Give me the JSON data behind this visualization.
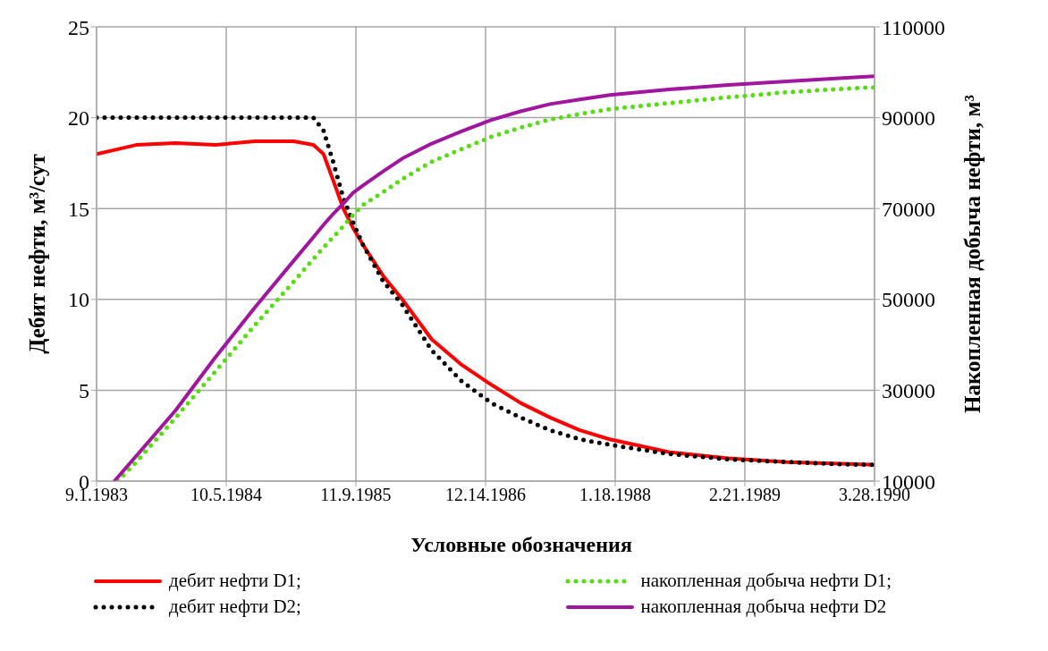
{
  "chart_data": {
    "type": "line",
    "xlabel": null,
    "ylabel": "Дебит нефти, м³/сут",
    "y2label": "Накопленная добыча нефти, м³",
    "legend_title": "Условные обозначения",
    "x": [
      "1983-09-01",
      "1984-01-01",
      "1984-05-01",
      "1984-09-01",
      "1985-01-01",
      "1985-05-01",
      "1985-07-01",
      "1985-08-01",
      "1985-09-01",
      "1985-10-01",
      "1985-11-01",
      "1985-12-01",
      "1986-02-01",
      "1986-04-01",
      "1986-07-01",
      "1986-10-01",
      "1987-01-01",
      "1987-04-01",
      "1987-07-01",
      "1987-10-01",
      "1988-01-01",
      "1988-07-01",
      "1989-01-01",
      "1989-07-01",
      "1990-01-01",
      "1990-03-28"
    ],
    "series": [
      {
        "name": "дебит нефти D1;",
        "color": "#ff0000",
        "line_style": "solid",
        "values": [
          18.0,
          18.5,
          18.6,
          18.5,
          18.7,
          18.7,
          18.5,
          18.0,
          16.5,
          15.0,
          13.9,
          13.0,
          11.3,
          10.0,
          7.8,
          6.4,
          5.3,
          4.3,
          3.5,
          2.8,
          2.3,
          1.6,
          1.25,
          1.05,
          0.95,
          0.9
        ]
      },
      {
        "name": "дебит нефти D2;",
        "color": "#000000",
        "line_style": "dotted",
        "values": [
          20,
          20,
          20,
          20,
          20,
          20,
          20,
          19.3,
          17.5,
          15.6,
          14.2,
          13.0,
          11.0,
          9.7,
          7.2,
          5.5,
          4.3,
          3.5,
          2.8,
          2.3,
          2.0,
          1.5,
          1.2,
          1.05,
          0.92,
          0.9
        ]
      },
      {
        "name": "накопленная добыча нефти D1;",
        "color": "#55dd11",
        "line_style": "dotted",
        "axis": "y2",
        "x": [
          "1983-11-06",
          "1984-01-01",
          "1984-05-01",
          "1984-09-01",
          "1985-01-01",
          "1985-05-01",
          "1985-07-01",
          "1985-08-01",
          "1985-09-01",
          "1985-10-01",
          "1985-11-01",
          "1985-12-01",
          "1986-02-01",
          "1986-04-01",
          "1986-07-01",
          "1986-10-01",
          "1987-01-01",
          "1987-04-01",
          "1987-07-01",
          "1987-10-01",
          "1988-01-01",
          "1988-07-01",
          "1989-01-01",
          "1989-07-01",
          "1990-01-01",
          "1990-03-28"
        ],
        "values": [
          10000,
          14200,
          23900,
          34100,
          44300,
          53900,
          58900,
          61400,
          63800,
          66100,
          68600,
          70800,
          73600,
          76500,
          80300,
          83100,
          85800,
          87800,
          89600,
          90800,
          91900,
          93200,
          94500,
          95600,
          96400,
          96700
        ]
      },
      {
        "name": "накопленная добыча нефти D2",
        "color": "#a0169e",
        "line_style": "solid",
        "axis": "y2",
        "x": [
          "1983-10-26",
          "1984-01-01",
          "1984-05-01",
          "1984-09-01",
          "1985-01-01",
          "1985-05-01",
          "1985-07-01",
          "1985-08-01",
          "1985-09-01",
          "1985-10-01",
          "1985-11-01",
          "1985-12-01",
          "1986-02-01",
          "1986-04-01",
          "1986-07-01",
          "1986-10-01",
          "1987-01-01",
          "1987-04-01",
          "1987-07-01",
          "1987-10-01",
          "1988-01-01",
          "1988-07-01",
          "1989-01-01",
          "1989-07-01",
          "1990-01-01",
          "1990-03-28"
        ],
        "values": [
          10000,
          15500,
          25500,
          37200,
          48200,
          58500,
          63700,
          66400,
          68900,
          71100,
          73500,
          75100,
          78200,
          81000,
          84300,
          87000,
          89500,
          91400,
          93000,
          94000,
          95000,
          96200,
          97200,
          98000,
          98800,
          99100
        ]
      }
    ],
    "xlim": [
      "1983-09-01",
      "1990-03-28"
    ],
    "xticks": [
      {
        "value": "1983-09-01",
        "label": "9.1.1983"
      },
      {
        "value": "1984-10-05",
        "label": "10.5.1984"
      },
      {
        "value": "1985-11-09",
        "label": "11.9.1985"
      },
      {
        "value": "1986-12-14",
        "label": "12.14.1986"
      },
      {
        "value": "1988-01-18",
        "label": "1.18.1988"
      },
      {
        "value": "1989-02-21",
        "label": "2.21.1989"
      },
      {
        "value": "1990-03-28",
        "label": "3.28.1990"
      }
    ],
    "ylim": [
      0,
      25
    ],
    "yticks": [
      0,
      5,
      10,
      15,
      20,
      25
    ],
    "y2lim": [
      10000,
      110000
    ],
    "y2ticks": [
      10000,
      30000,
      50000,
      70000,
      90000,
      110000
    ],
    "grid": true,
    "legend": "bottom",
    "marker": "none"
  }
}
